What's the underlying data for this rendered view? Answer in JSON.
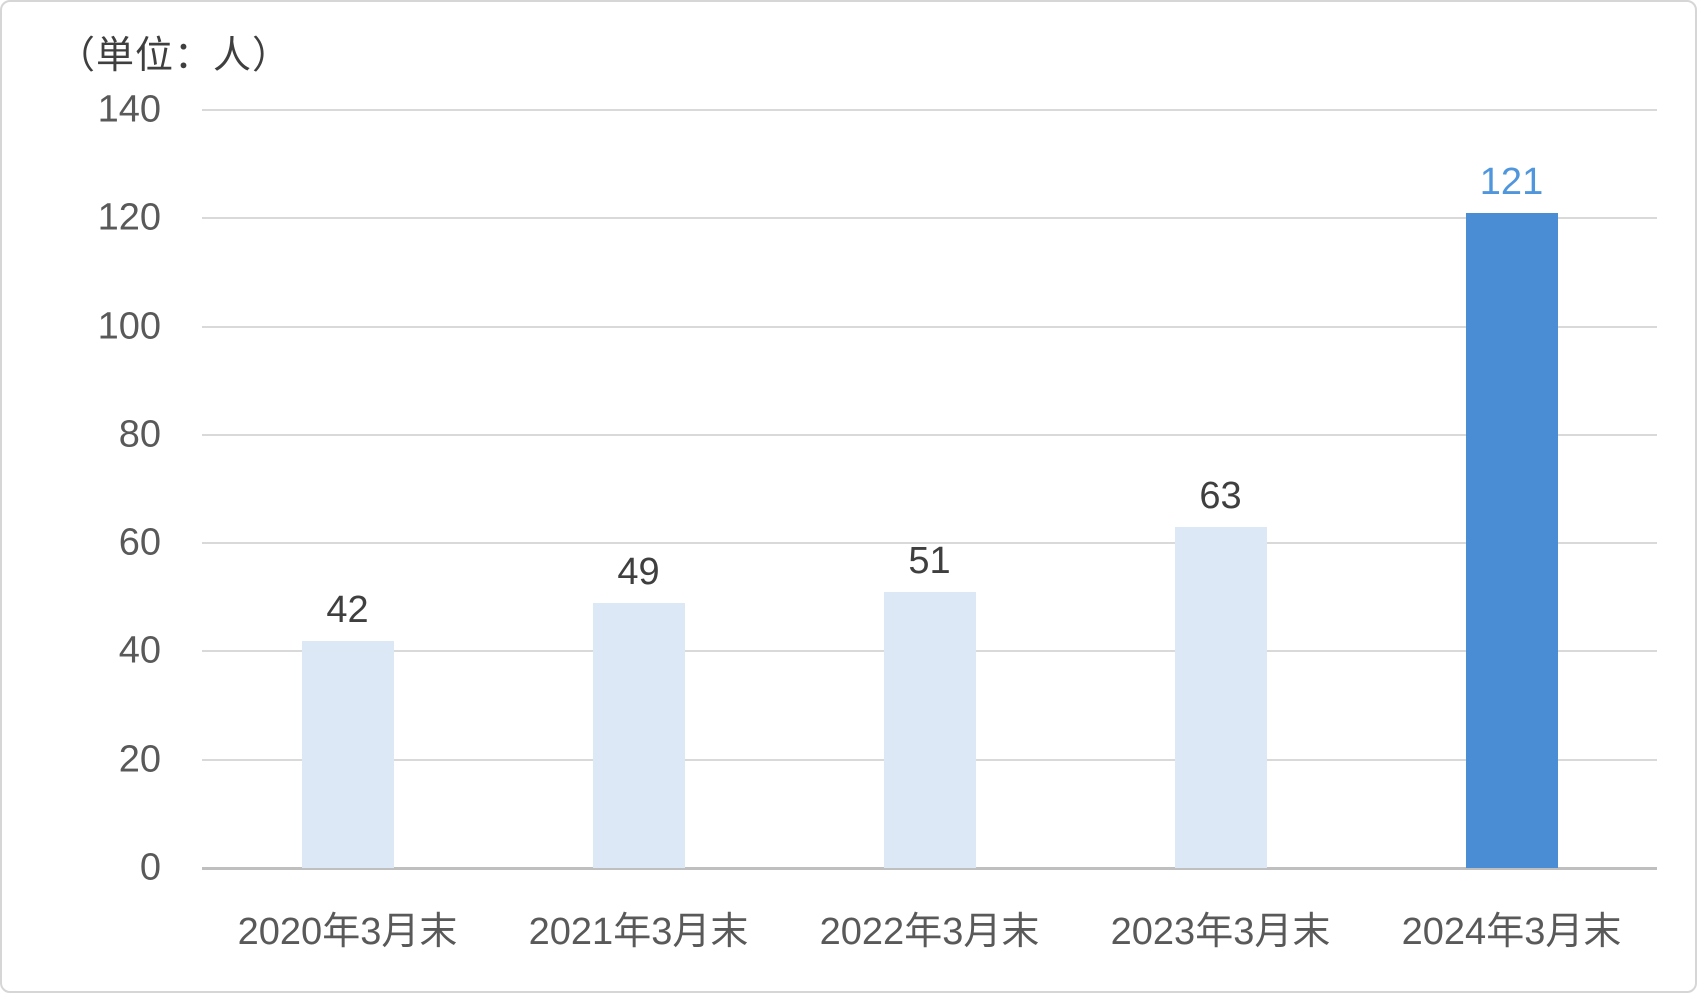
{
  "chart_data": {
    "type": "bar",
    "title": "",
    "unit_label": "（単位：人）",
    "categories": [
      "2020年3月末",
      "2021年3月末",
      "2022年3月末",
      "2023年3月末",
      "2024年3月末"
    ],
    "values": [
      42,
      49,
      51,
      63,
      121
    ],
    "data_labels": [
      "42",
      "49",
      "51",
      "63",
      "121"
    ],
    "xlabel": "",
    "ylabel": "",
    "ylim": [
      0,
      140
    ],
    "yticks": [
      0,
      20,
      40,
      60,
      80,
      100,
      120,
      140
    ],
    "grid": true,
    "legend": false,
    "highlight_index": 4,
    "colors": {
      "bar_default": "#dce8f6",
      "bar_highlight": "#4a8dd5",
      "label_default": "#3f3f3f",
      "label_highlight": "#5096dc",
      "gridline": "#d9d9d9",
      "axis_line": "#bfbfbf",
      "tick_text": "#595959",
      "frame_border": "#d6d6d6",
      "background": "#ffffff"
    }
  }
}
